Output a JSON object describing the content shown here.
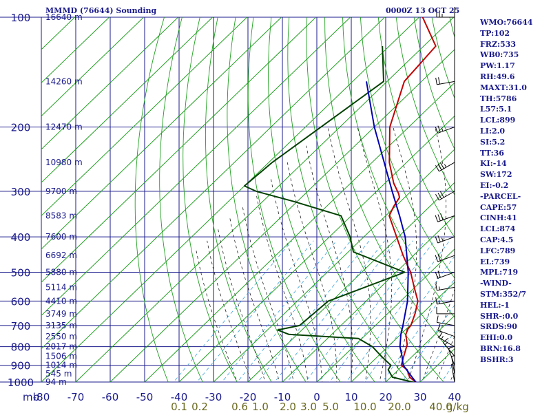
{
  "header": {
    "title": "MMMD (76644) Sounding",
    "time": "0000Z 13 OCT 25"
  },
  "colors": {
    "frame": "#1a1a8c",
    "dry_adiabat": "#20a020",
    "moist_adiabat": "#202020",
    "mixing_ratio": "#3aa0d8",
    "temperature": "#c00000",
    "dewpoint": "#004000",
    "parcel": "#0000b0",
    "axis_text": "#1a1a8c",
    "mixing_text": "#6a6a20"
  },
  "chart_data": {
    "type": "line",
    "title": "MMMD (76644) Sounding",
    "subtitle": "0000Z 13 OCT 25",
    "y_axis": {
      "unit": "mb",
      "scale": "log",
      "range": [
        1000,
        100
      ],
      "ticks": [
        100,
        200,
        300,
        400,
        500,
        600,
        700,
        800,
        900,
        1000
      ]
    },
    "x_axis": {
      "unit": "°C",
      "range": [
        -80,
        40
      ],
      "ticks": [
        -80,
        -70,
        -60,
        -50,
        -40,
        -30,
        -20,
        -10,
        0,
        10,
        20,
        30,
        40
      ],
      "skewed": true
    },
    "heights": [
      {
        "p": 100,
        "label": "16640 m"
      },
      {
        "p": 150,
        "label": "14260 m"
      },
      {
        "p": 200,
        "label": "12470 m"
      },
      {
        "p": 250,
        "label": "10980 m"
      },
      {
        "p": 300,
        "label": "9700 m"
      },
      {
        "p": 350,
        "label": "8583 m"
      },
      {
        "p": 400,
        "label": "7600 m"
      },
      {
        "p": 450,
        "label": "6692 m"
      },
      {
        "p": 500,
        "label": "5880 m"
      },
      {
        "p": 550,
        "label": "5114 m"
      },
      {
        "p": 600,
        "label": "4410 m"
      },
      {
        "p": 650,
        "label": "3749 m"
      },
      {
        "p": 700,
        "label": "3135 m"
      },
      {
        "p": 750,
        "label": "2550 m"
      },
      {
        "p": 800,
        "label": "2017 m"
      },
      {
        "p": 850,
        "label": "1506 m"
      },
      {
        "p": 900,
        "label": "1014 m"
      },
      {
        "p": 950,
        "label": "545 m"
      },
      {
        "p": 1000,
        "label": "94 m"
      }
    ],
    "mixing_ratio_labels": [
      "0.1",
      "0.2",
      "0.6",
      "1.0",
      "2.0",
      "3.0",
      "5.0",
      "10.0",
      "20.0",
      "40.0"
    ],
    "mixing_ratio_unit": "g/kg",
    "series": [
      {
        "key": "temperature",
        "points": [
          [
            1003,
            29.0
          ],
          [
            970,
            25.5
          ],
          [
            925,
            22.5
          ],
          [
            900,
            19.5
          ],
          [
            850,
            17.5
          ],
          [
            790,
            15.0
          ],
          [
            740,
            11.5
          ],
          [
            715,
            10.5
          ],
          [
            700,
            10.3
          ],
          [
            650,
            8.0
          ],
          [
            600,
            5.0
          ],
          [
            550,
            -0.2
          ],
          [
            500,
            -5.8
          ],
          [
            450,
            -13.0
          ],
          [
            400,
            -20.5
          ],
          [
            350,
            -29.0
          ],
          [
            330,
            -30.5
          ],
          [
            312,
            -31.5
          ],
          [
            305,
            -32.8
          ],
          [
            285,
            -37.5
          ],
          [
            250,
            -45.0
          ],
          [
            200,
            -55.5
          ],
          [
            150,
            -65.0
          ],
          [
            120,
            -66.5
          ],
          [
            100,
            -79.0
          ]
        ]
      },
      {
        "key": "dewpoint",
        "points": [
          [
            1003,
            28.5
          ],
          [
            970,
            20.5
          ],
          [
            925,
            17.0
          ],
          [
            900,
            16.5
          ],
          [
            850,
            11.0
          ],
          [
            800,
            5.5
          ],
          [
            760,
            -1.0
          ],
          [
            740,
            -22.5
          ],
          [
            720,
            -27.0
          ],
          [
            700,
            -22.0
          ],
          [
            600,
            -21.0
          ],
          [
            500,
            -7.5
          ],
          [
            440,
            -28.5
          ],
          [
            400,
            -34.0
          ],
          [
            350,
            -43.0
          ],
          [
            320,
            -61.0
          ],
          [
            300,
            -75.0
          ],
          [
            290,
            -80.0
          ],
          [
            250,
            -79.0
          ],
          [
            150,
            -71.0
          ],
          [
            120,
            -82.0
          ]
        ]
      },
      {
        "key": "parcel",
        "points": [
          [
            1003,
            29.0
          ],
          [
            950,
            24.5
          ],
          [
            899,
            20.0
          ],
          [
            850,
            17.0
          ],
          [
            800,
            13.5
          ],
          [
            739,
            10.0
          ],
          [
            700,
            8.0
          ],
          [
            600,
            2.0
          ],
          [
            500,
            -6.5
          ],
          [
            400,
            -18.0
          ],
          [
            350,
            -26.0
          ],
          [
            300,
            -35.5
          ],
          [
            250,
            -46.5
          ],
          [
            200,
            -60.0
          ],
          [
            150,
            -76.0
          ]
        ]
      }
    ],
    "wind_barbs": [
      {
        "p": 1000,
        "dir": 350,
        "spd": 5
      },
      {
        "p": 950,
        "dir": 350,
        "spd": 5
      },
      {
        "p": 900,
        "dir": 340,
        "spd": 10
      },
      {
        "p": 850,
        "dir": 320,
        "spd": 15
      },
      {
        "p": 800,
        "dir": 300,
        "spd": 15
      },
      {
        "p": 750,
        "dir": 290,
        "spd": 10
      },
      {
        "p": 700,
        "dir": 280,
        "spd": 10
      },
      {
        "p": 650,
        "dir": 270,
        "spd": 10
      },
      {
        "p": 600,
        "dir": 260,
        "spd": 15
      },
      {
        "p": 550,
        "dir": 260,
        "spd": 15
      },
      {
        "p": 500,
        "dir": 250,
        "spd": 20
      },
      {
        "p": 450,
        "dir": 250,
        "spd": 20
      },
      {
        "p": 400,
        "dir": 250,
        "spd": 25
      },
      {
        "p": 350,
        "dir": 250,
        "spd": 30
      },
      {
        "p": 300,
        "dir": 240,
        "spd": 30
      },
      {
        "p": 250,
        "dir": 240,
        "spd": 35
      },
      {
        "p": 200,
        "dir": 250,
        "spd": 25
      },
      {
        "p": 150,
        "dir": 260,
        "spd": 20
      },
      {
        "p": 100,
        "dir": 270,
        "spd": 25
      }
    ]
  },
  "indices": [
    "WMO:76644",
    "TP:102",
    "FRZ:533",
    "WB0:735",
    "PW:1.17",
    "RH:49.6",
    "MAXT:31.0",
    "TH:5786",
    "L57:5.1",
    "LCL:899",
    "LI:2.0",
    "SI:5.2",
    "TT:36",
    "KI:-14",
    "SW:172",
    "EI:-0.2",
    "-PARCEL-",
    "CAPE:57",
    "CINH:41",
    "LCL:874",
    "CAP:4.5",
    "LFC:789",
    "EL:739",
    "MPL:719",
    "-WIND-",
    "STM:352/7",
    "HEL:-1",
    "SHR-:0.0",
    "SRDS:90",
    "EHI:0.0",
    "BRN:16.8",
    "BSHR:3"
  ]
}
